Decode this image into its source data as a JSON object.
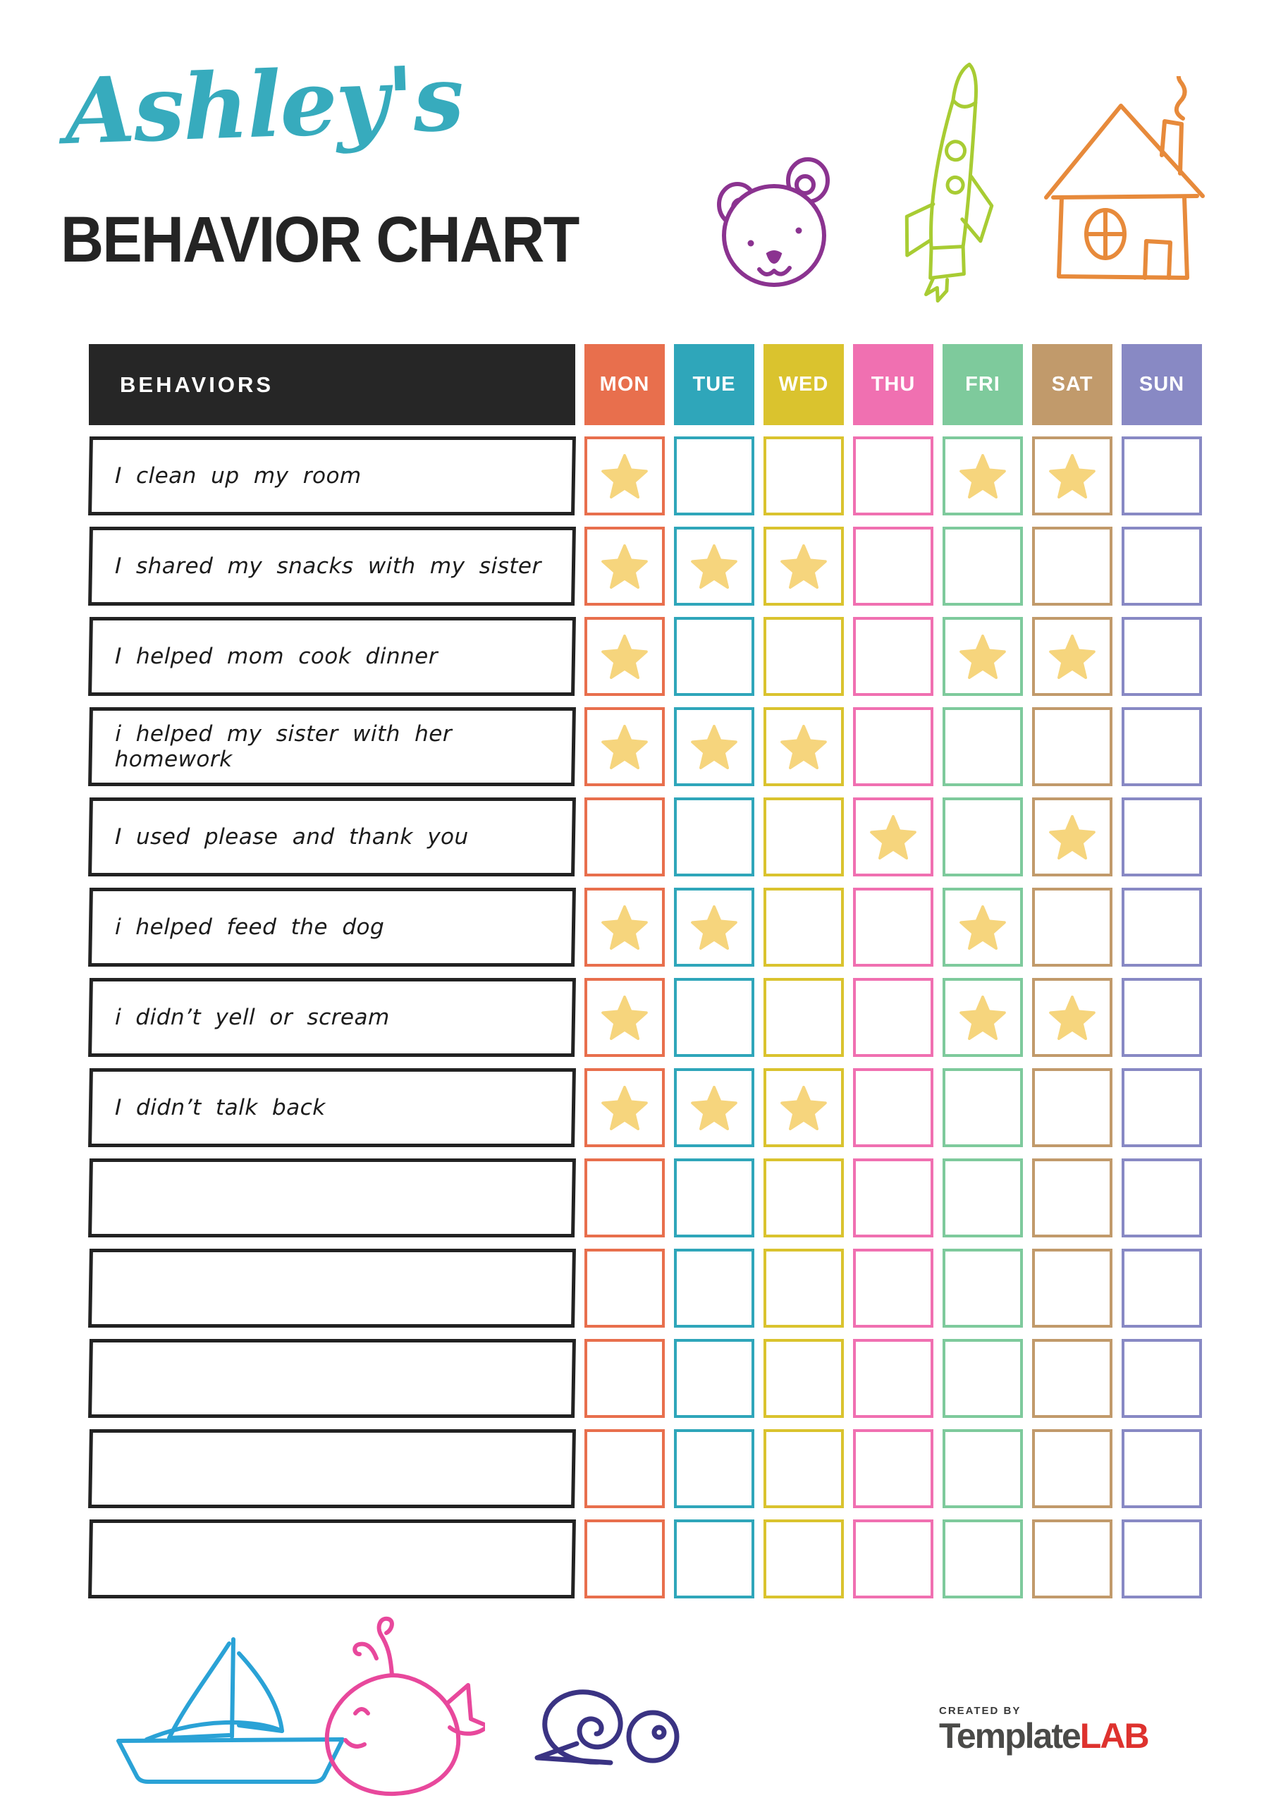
{
  "page": {
    "title_script": "Ashley's",
    "title_heading": "BEHAVIOR CHART"
  },
  "colors": {
    "title_teal": "#37abbd",
    "heading_dark": "#242424",
    "header_bar_dark": "#262626",
    "star_yellow": "#f6d57d",
    "label_border_black": "#222222"
  },
  "table": {
    "behaviors_header": "BEHAVIORS",
    "days": [
      {
        "label": "MON",
        "color": "#e86f4d"
      },
      {
        "label": "TUE",
        "color": "#2fa6ba"
      },
      {
        "label": "WED",
        "color": "#dac32e"
      },
      {
        "label": "THU",
        "color": "#f070b1"
      },
      {
        "label": "FRI",
        "color": "#7eca9c"
      },
      {
        "label": "SAT",
        "color": "#c19a6b"
      },
      {
        "label": "SUN",
        "color": "#8889c4"
      }
    ],
    "rows": [
      {
        "behavior": "I clean up my room",
        "stars": [
          "MON",
          "FRI",
          "SAT"
        ]
      },
      {
        "behavior": "I shared my snacks with my sister",
        "stars": [
          "MON",
          "TUE",
          "WED"
        ]
      },
      {
        "behavior": "I helped mom cook dinner",
        "stars": [
          "MON",
          "FRI",
          "SAT"
        ]
      },
      {
        "behavior": "i helped my sister with her homework",
        "stars": [
          "MON",
          "TUE",
          "WED"
        ]
      },
      {
        "behavior": "I used please and thank you",
        "stars": [
          "THU",
          "SAT"
        ]
      },
      {
        "behavior": "i helped feed the dog",
        "stars": [
          "MON",
          "TUE",
          "FRI"
        ]
      },
      {
        "behavior": "i didn’t yell or scream",
        "stars": [
          "MON",
          "FRI",
          "SAT"
        ]
      },
      {
        "behavior": "I didn’t talk back",
        "stars": [
          "MON",
          "TUE",
          "WED"
        ]
      },
      {
        "behavior": "",
        "stars": []
      },
      {
        "behavior": "",
        "stars": []
      },
      {
        "behavior": "",
        "stars": []
      },
      {
        "behavior": "",
        "stars": []
      },
      {
        "behavior": "",
        "stars": []
      }
    ]
  },
  "decorations": {
    "bear": "#8b3390",
    "rocket": "#a8cc33",
    "house": "#e78a3b",
    "sailboat": "#2aa2d6",
    "whale": "#e8489c",
    "snail": "#3a3383"
  },
  "logo": {
    "created_by": "CREATED BY",
    "name_part1": "Template",
    "name_part2": "LAB"
  }
}
